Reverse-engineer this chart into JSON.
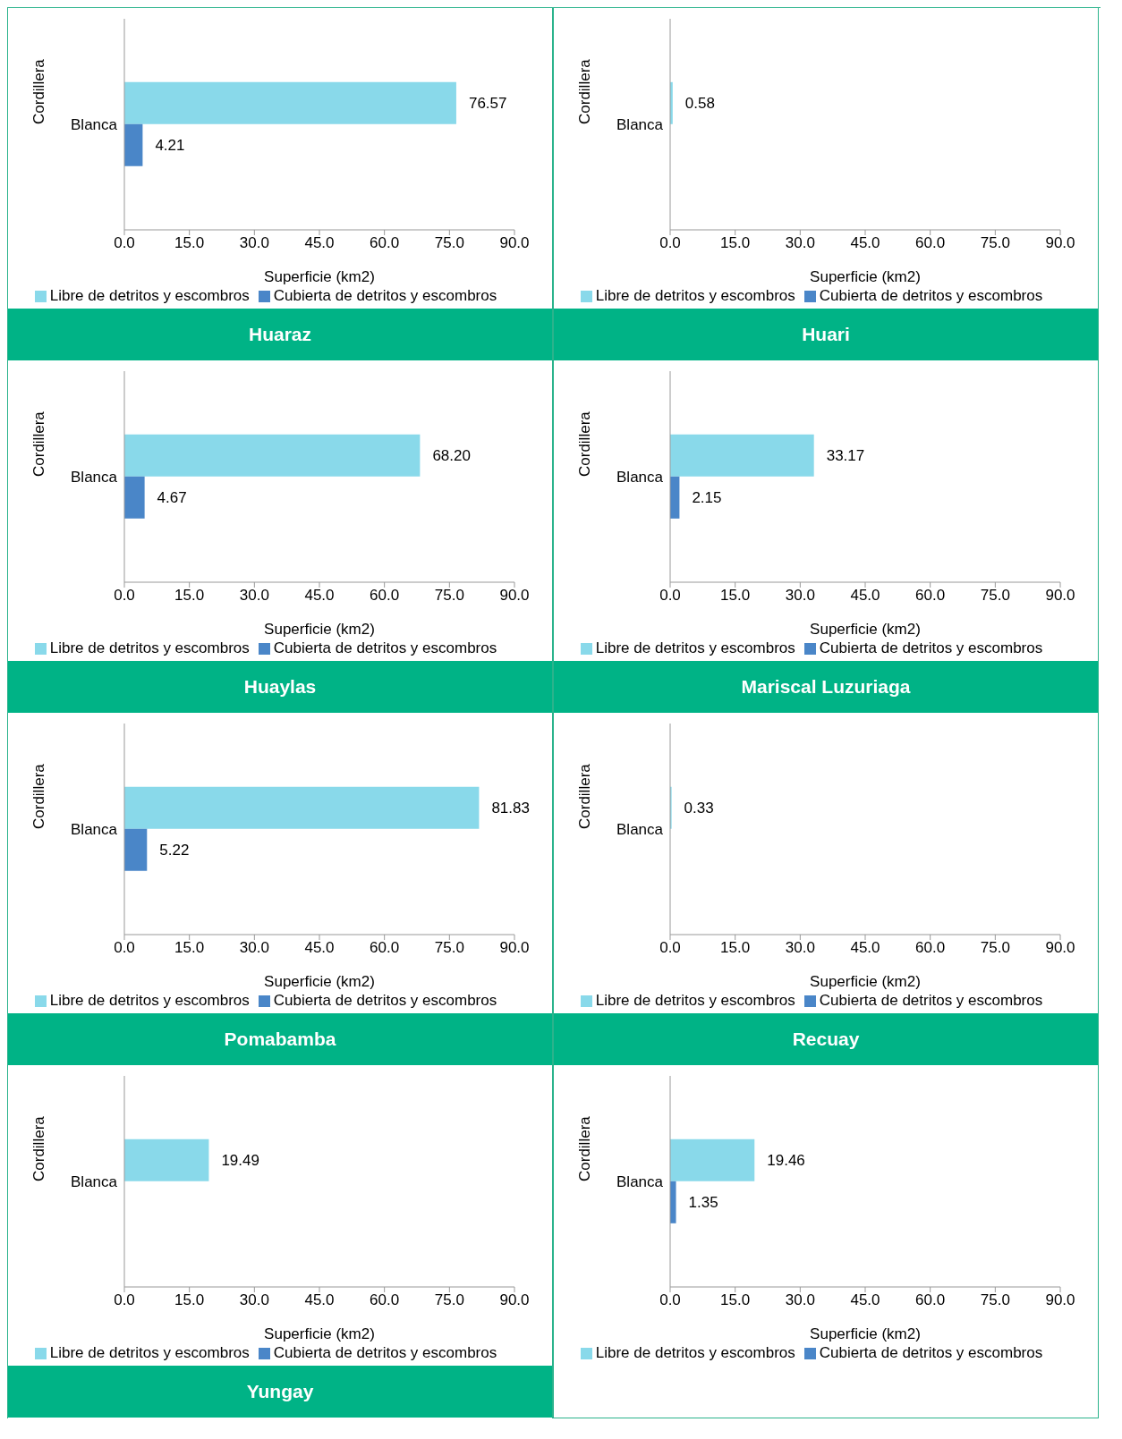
{
  "chart_data": [
    {
      "type": "bar",
      "orientation": "horizontal",
      "title": "Huaraz",
      "categories": [
        "Blanca"
      ],
      "ylabel": "Cordillera",
      "xlabel": "Superficie (km2)",
      "xlim": [
        0,
        90
      ],
      "xticks": [
        {
          "value": 0,
          "label": "0.0"
        },
        {
          "value": 15,
          "label": "15.0"
        },
        {
          "value": 30,
          "label": "30.0"
        },
        {
          "value": 45,
          "label": "45.0"
        },
        {
          "value": 60,
          "label": "60.0"
        },
        {
          "value": 75,
          "label": "75.0"
        },
        {
          "value": 90,
          "label": "90.0"
        }
      ],
      "legend": "bottom",
      "grid": false,
      "series": [
        {
          "name": "Libre de detritos y escombros",
          "color": "#89d9ea",
          "values": [
            76.57
          ],
          "value_labels": [
            "76.57"
          ]
        },
        {
          "name": "Cubierta de detritos y escombros",
          "color": "#4a86c8",
          "values": [
            4.21
          ],
          "value_labels": [
            "4.21"
          ]
        }
      ]
    },
    {
      "type": "bar",
      "orientation": "horizontal",
      "title": "Huari",
      "categories": [
        "Blanca"
      ],
      "ylabel": "Cordillera",
      "xlabel": "Superficie (km2)",
      "xlim": [
        0,
        90
      ],
      "xticks": [
        {
          "value": 0,
          "label": "0.0"
        },
        {
          "value": 15,
          "label": "15.0"
        },
        {
          "value": 30,
          "label": "30.0"
        },
        {
          "value": 45,
          "label": "45.0"
        },
        {
          "value": 60,
          "label": "60.0"
        },
        {
          "value": 75,
          "label": "75.0"
        },
        {
          "value": 90,
          "label": "90.0"
        }
      ],
      "legend": "bottom",
      "grid": false,
      "series": [
        {
          "name": "Libre de detritos y escombros",
          "color": "#89d9ea",
          "values": [
            0.58
          ],
          "value_labels": [
            "0.58"
          ]
        },
        {
          "name": "Cubierta de detritos y escombros",
          "color": "#4a86c8",
          "values": [
            null
          ],
          "value_labels": [
            null
          ]
        }
      ]
    },
    {
      "type": "bar",
      "orientation": "horizontal",
      "title": "Huaylas",
      "categories": [
        "Blanca"
      ],
      "ylabel": "Cordillera",
      "xlabel": "Superficie (km2)",
      "xlim": [
        0,
        90
      ],
      "xticks": [
        {
          "value": 0,
          "label": "0.0"
        },
        {
          "value": 15,
          "label": "15.0"
        },
        {
          "value": 30,
          "label": "30.0"
        },
        {
          "value": 45,
          "label": "45.0"
        },
        {
          "value": 60,
          "label": "60.0"
        },
        {
          "value": 75,
          "label": "75.0"
        },
        {
          "value": 90,
          "label": "90.0"
        }
      ],
      "legend": "bottom",
      "grid": false,
      "series": [
        {
          "name": "Libre de detritos y escombros",
          "color": "#89d9ea",
          "values": [
            68.2
          ],
          "value_labels": [
            "68.20"
          ]
        },
        {
          "name": "Cubierta de detritos y escombros",
          "color": "#4a86c8",
          "values": [
            4.67
          ],
          "value_labels": [
            "4.67"
          ]
        }
      ]
    },
    {
      "type": "bar",
      "orientation": "horizontal",
      "title": "Mariscal Luzuriaga",
      "categories": [
        "Blanca"
      ],
      "ylabel": "Cordillera",
      "xlabel": "Superficie (km2)",
      "xlim": [
        0,
        90
      ],
      "xticks": [
        {
          "value": 0,
          "label": "0.0"
        },
        {
          "value": 15,
          "label": "15.0"
        },
        {
          "value": 30,
          "label": "30.0"
        },
        {
          "value": 45,
          "label": "45.0"
        },
        {
          "value": 60,
          "label": "60.0"
        },
        {
          "value": 75,
          "label": "75.0"
        },
        {
          "value": 90,
          "label": "90.0"
        }
      ],
      "legend": "bottom",
      "grid": false,
      "series": [
        {
          "name": "Libre de detritos y escombros",
          "color": "#89d9ea",
          "values": [
            33.17
          ],
          "value_labels": [
            "33.17"
          ]
        },
        {
          "name": "Cubierta de detritos y escombros",
          "color": "#4a86c8",
          "values": [
            2.15
          ],
          "value_labels": [
            "2.15"
          ]
        }
      ]
    },
    {
      "type": "bar",
      "orientation": "horizontal",
      "title": "Pomabamba",
      "categories": [
        "Blanca"
      ],
      "ylabel": "Cordillera",
      "xlabel": "Superficie (km2)",
      "xlim": [
        0,
        90
      ],
      "xticks": [
        {
          "value": 0,
          "label": "0.0"
        },
        {
          "value": 15,
          "label": "15.0"
        },
        {
          "value": 30,
          "label": "30.0"
        },
        {
          "value": 45,
          "label": "45.0"
        },
        {
          "value": 60,
          "label": "60.0"
        },
        {
          "value": 75,
          "label": "75.0"
        },
        {
          "value": 90,
          "label": "90.0"
        }
      ],
      "legend": "bottom",
      "grid": false,
      "series": [
        {
          "name": "Libre de detritos y escombros",
          "color": "#89d9ea",
          "values": [
            81.83
          ],
          "value_labels": [
            "81.83"
          ]
        },
        {
          "name": "Cubierta de detritos y escombros",
          "color": "#4a86c8",
          "values": [
            5.22
          ],
          "value_labels": [
            "5.22"
          ]
        }
      ]
    },
    {
      "type": "bar",
      "orientation": "horizontal",
      "title": "Recuay",
      "categories": [
        "Blanca"
      ],
      "ylabel": "Cordillera",
      "xlabel": "Superficie (km2)",
      "xlim": [
        0,
        90
      ],
      "xticks": [
        {
          "value": 0,
          "label": "0.0"
        },
        {
          "value": 15,
          "label": "15.0"
        },
        {
          "value": 30,
          "label": "30.0"
        },
        {
          "value": 45,
          "label": "45.0"
        },
        {
          "value": 60,
          "label": "60.0"
        },
        {
          "value": 75,
          "label": "75.0"
        },
        {
          "value": 90,
          "label": "90.0"
        }
      ],
      "legend": "bottom",
      "grid": false,
      "series": [
        {
          "name": "Libre de detritos y escombros",
          "color": "#89d9ea",
          "values": [
            0.33
          ],
          "value_labels": [
            "0.33"
          ]
        },
        {
          "name": "Cubierta de detritos y escombros",
          "color": "#4a86c8",
          "values": [
            null
          ],
          "value_labels": [
            null
          ]
        }
      ]
    },
    {
      "type": "bar",
      "orientation": "horizontal",
      "title": "Yungay",
      "categories": [
        "Blanca"
      ],
      "ylabel": "Cordillera",
      "xlabel": "Superficie (km2)",
      "xlim": [
        0,
        90
      ],
      "xticks": [
        {
          "value": 0,
          "label": "0.0"
        },
        {
          "value": 15,
          "label": "15.0"
        },
        {
          "value": 30,
          "label": "30.0"
        },
        {
          "value": 45,
          "label": "45.0"
        },
        {
          "value": 60,
          "label": "60.0"
        },
        {
          "value": 75,
          "label": "75.0"
        },
        {
          "value": 90,
          "label": "90.0"
        }
      ],
      "legend": "bottom",
      "grid": false,
      "series": [
        {
          "name": "Libre de detritos y escombros",
          "color": "#89d9ea",
          "values": [
            19.49
          ],
          "value_labels": [
            "19.49"
          ]
        },
        {
          "name": "Cubierta de detritos y escombros",
          "color": "#4a86c8",
          "values": [
            null
          ],
          "value_labels": [
            null
          ]
        }
      ]
    },
    {
      "type": "bar",
      "orientation": "horizontal",
      "categories": [
        "Blanca"
      ],
      "ylabel": "Cordillera",
      "xlabel": "Superficie (km2)",
      "xlim": [
        0,
        90
      ],
      "xticks": [
        {
          "value": 0,
          "label": "0.0"
        },
        {
          "value": 15,
          "label": "15.0"
        },
        {
          "value": 30,
          "label": "30.0"
        },
        {
          "value": 45,
          "label": "45.0"
        },
        {
          "value": 60,
          "label": "60.0"
        },
        {
          "value": 75,
          "label": "75.0"
        },
        {
          "value": 90,
          "label": "90.0"
        }
      ],
      "legend": "bottom",
      "grid": false,
      "series": [
        {
          "name": "Libre de detritos y escombros",
          "color": "#89d9ea",
          "values": [
            19.46
          ],
          "value_labels": [
            "19.46"
          ]
        },
        {
          "name": "Cubierta de detritos y escombros",
          "color": "#4a86c8",
          "values": [
            1.35
          ],
          "value_labels": [
            "1.35"
          ]
        }
      ]
    }
  ]
}
